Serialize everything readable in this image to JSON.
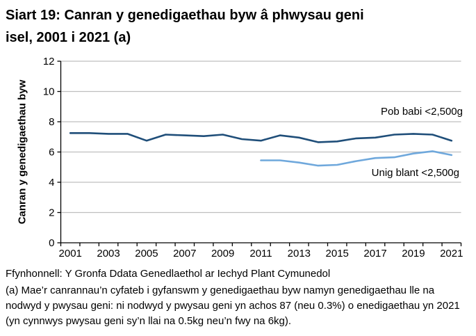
{
  "title_lines": [
    "Siart 19: Canran y genedigaethau byw â phwysau geni",
    "isel, 2001 i 2021 (a)"
  ],
  "chart_data": {
    "type": "line",
    "title": "Siart 19: Canran y genedigaethau byw â phwysau geni isel, 2001 i 2021 (a)",
    "xlabel": "",
    "ylabel": "Canran y genedigaethau byw",
    "ylim": [
      0,
      12
    ],
    "ytick_step": 2,
    "grid": "horizontal",
    "legend_position": "inline-labels-right-of-plot",
    "x": [
      2001,
      2002,
      2003,
      2004,
      2005,
      2006,
      2007,
      2008,
      2009,
      2010,
      2011,
      2012,
      2013,
      2014,
      2015,
      2016,
      2017,
      2018,
      2019,
      2020,
      2021
    ],
    "xtick_labels": [
      "2001",
      "2003",
      "2005",
      "2007",
      "2009",
      "2011",
      "2013",
      "2015",
      "2017",
      "2019",
      "2021"
    ],
    "series": [
      {
        "name": "Pob babi <2,500g",
        "color": "#1f4e79",
        "values": [
          7.25,
          7.25,
          7.2,
          7.2,
          6.75,
          7.15,
          7.1,
          7.05,
          7.15,
          6.85,
          6.75,
          7.1,
          6.95,
          6.65,
          6.7,
          6.9,
          6.95,
          7.15,
          7.2,
          7.15,
          6.75
        ]
      },
      {
        "name": "Unig blant <2,500g",
        "color": "#6fa8dc",
        "values": [
          null,
          null,
          null,
          null,
          null,
          null,
          null,
          null,
          null,
          null,
          5.45,
          5.45,
          5.3,
          5.1,
          5.15,
          5.4,
          5.6,
          5.65,
          5.9,
          6.05,
          5.8
        ]
      }
    ],
    "colors": {
      "axis": "#000000",
      "gridline": "#bfbfbf",
      "text": "#000000",
      "background": "#ffffff"
    }
  },
  "footer": {
    "source": "Ffynhonnell: Y Gronfa Ddata Genedlaethol ar Iechyd Plant Cymunedol",
    "footnote": "(a) Mae’r canrannau’n cyfateb i gyfanswm y genedigaethau byw namyn genedigaethau lle na nodwyd y pwysau geni: ni nodwyd y pwysau geni yn achos 87 (neu 0.3%) o enedigaethau yn 2021 (yn cynnwys pwysau geni sy’n llai na 0.5kg neu’n fwy na 6kg)."
  }
}
